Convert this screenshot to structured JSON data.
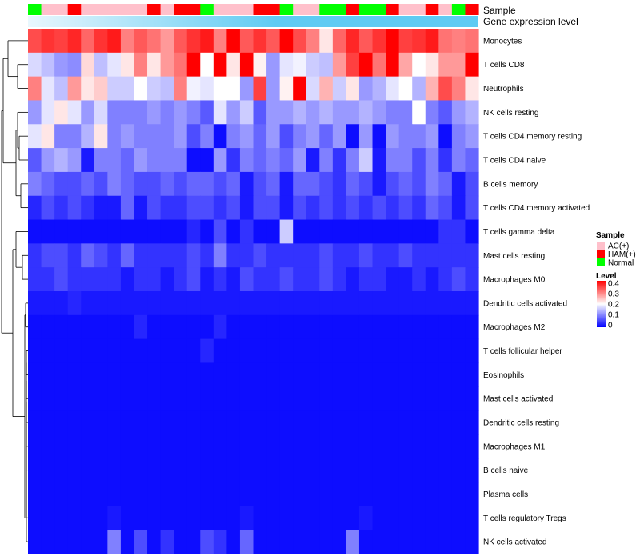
{
  "chart_data": {
    "type": "heatmap",
    "annotation_rows": [
      "Sample",
      "Gene expression level"
    ],
    "sample_groups": [
      "Normal",
      "AC(+)",
      "AC(+)",
      "HAM(+)",
      "AC(+)",
      "AC(+)",
      "AC(+)",
      "AC(+)",
      "AC(+)",
      "HAM(+)",
      "AC(+)",
      "HAM(+)",
      "HAM(+)",
      "Normal",
      "AC(+)",
      "AC(+)",
      "AC(+)",
      "HAM(+)",
      "HAM(+)",
      "Normal",
      "AC(+)",
      "AC(+)",
      "Normal",
      "Normal",
      "HAM(+)",
      "Normal",
      "Normal",
      "HAM(+)",
      "AC(+)",
      "AC(+)",
      "HAM(+)",
      "AC(+)",
      "Normal",
      "HAM(+)"
    ],
    "rows": [
      "Monocytes",
      "T cells CD8",
      "Neutrophils",
      "NK cells resting",
      "T cells CD4 memory resting",
      "T cells CD4 naive",
      "B cells memory",
      "T cells CD4 memory activated",
      "T cells gamma delta",
      "Mast cells resting",
      "Macrophages M0",
      "Dendritic cells activated",
      "Macrophages M2",
      "T cells follicular helper",
      "Eosinophils",
      "Mast cells activated",
      "Dendritic cells resting",
      "Macrophages M1",
      "B cells naive",
      "Plasma cells",
      "T cells regulatory  Tregs",
      "NK cells activated"
    ],
    "values": [
      [
        0.34,
        0.36,
        0.35,
        0.37,
        0.32,
        0.36,
        0.38,
        0.3,
        0.33,
        0.31,
        0.28,
        0.33,
        0.36,
        0.38,
        0.3,
        0.4,
        0.33,
        0.36,
        0.33,
        0.41,
        0.34,
        0.3,
        0.22,
        0.32,
        0.37,
        0.33,
        0.36,
        0.4,
        0.35,
        0.36,
        0.38,
        0.31,
        0.3,
        0.31
      ],
      [
        0.17,
        0.15,
        0.12,
        0.11,
        0.23,
        0.15,
        0.18,
        0.22,
        0.3,
        0.22,
        0.28,
        0.31,
        0.4,
        0.2,
        0.43,
        0.22,
        0.4,
        0.21,
        0.12,
        0.18,
        0.19,
        0.16,
        0.15,
        0.28,
        0.35,
        0.42,
        0.31,
        0.42,
        0.27,
        0.2,
        0.22,
        0.28,
        0.28,
        0.42
      ],
      [
        0.3,
        0.18,
        0.15,
        0.28,
        0.22,
        0.24,
        0.16,
        0.16,
        0.2,
        0.16,
        0.15,
        0.3,
        0.19,
        0.18,
        0.2,
        0.2,
        0.12,
        0.35,
        0.12,
        0.21,
        0.42,
        0.17,
        0.26,
        0.16,
        0.22,
        0.12,
        0.14,
        0.18,
        0.2,
        0.14,
        0.26,
        0.34,
        0.3,
        0.22
      ],
      [
        0.12,
        0.18,
        0.22,
        0.18,
        0.12,
        0.17,
        0.1,
        0.1,
        0.1,
        0.12,
        0.1,
        0.12,
        0.1,
        0.07,
        0.18,
        0.12,
        0.16,
        0.07,
        0.12,
        0.12,
        0.14,
        0.12,
        0.14,
        0.12,
        0.12,
        0.14,
        0.12,
        0.1,
        0.1,
        0.2,
        0.1,
        0.07,
        0.12,
        0.14
      ],
      [
        0.18,
        0.22,
        0.1,
        0.1,
        0.14,
        0.22,
        0.1,
        0.12,
        0.1,
        0.1,
        0.1,
        0.12,
        0.06,
        0.1,
        0.01,
        0.1,
        0.12,
        0.08,
        0.12,
        0.06,
        0.1,
        0.12,
        0.08,
        0.12,
        0.01,
        0.12,
        0.01,
        0.12,
        0.1,
        0.1,
        0.12,
        0.01,
        0.1,
        0.12
      ],
      [
        0.07,
        0.12,
        0.14,
        0.12,
        0.02,
        0.1,
        0.1,
        0.08,
        0.12,
        0.1,
        0.1,
        0.1,
        0.01,
        0.01,
        0.12,
        0.04,
        0.1,
        0.08,
        0.1,
        0.08,
        0.12,
        0.02,
        0.1,
        0.04,
        0.1,
        0.16,
        0.02,
        0.1,
        0.1,
        0.06,
        0.1,
        0.04,
        0.1,
        0.08
      ],
      [
        0.1,
        0.08,
        0.06,
        0.06,
        0.08,
        0.06,
        0.1,
        0.08,
        0.06,
        0.06,
        0.08,
        0.06,
        0.08,
        0.08,
        0.06,
        0.08,
        0.02,
        0.06,
        0.08,
        0.02,
        0.08,
        0.08,
        0.06,
        0.04,
        0.08,
        0.06,
        0.02,
        0.06,
        0.08,
        0.06,
        0.1,
        0.08,
        0.02,
        0.06
      ],
      [
        0.03,
        0.06,
        0.04,
        0.06,
        0.04,
        0.02,
        0.02,
        0.08,
        0.02,
        0.06,
        0.04,
        0.04,
        0.06,
        0.06,
        0.04,
        0.06,
        0.02,
        0.06,
        0.06,
        0.02,
        0.06,
        0.04,
        0.06,
        0.04,
        0.06,
        0.04,
        0.06,
        0.04,
        0.06,
        0.04,
        0.08,
        0.06,
        0.02,
        0.06
      ],
      [
        0.01,
        0.01,
        0.01,
        0.01,
        0.01,
        0.01,
        0.01,
        0.01,
        0.01,
        0.01,
        0.01,
        0.01,
        0.03,
        0.01,
        0.06,
        0.01,
        0.04,
        0.01,
        0.01,
        0.16,
        0.01,
        0.01,
        0.01,
        0.01,
        0.01,
        0.01,
        0.01,
        0.01,
        0.01,
        0.01,
        0.01,
        0.04,
        0.04,
        0.01
      ],
      [
        0.04,
        0.06,
        0.06,
        0.04,
        0.08,
        0.06,
        0.04,
        0.08,
        0.04,
        0.04,
        0.04,
        0.04,
        0.06,
        0.04,
        0.1,
        0.04,
        0.04,
        0.06,
        0.04,
        0.04,
        0.04,
        0.04,
        0.06,
        0.04,
        0.04,
        0.06,
        0.04,
        0.04,
        0.06,
        0.04,
        0.04,
        0.04,
        0.04,
        0.04
      ],
      [
        0.04,
        0.04,
        0.06,
        0.04,
        0.04,
        0.04,
        0.04,
        0.02,
        0.04,
        0.04,
        0.02,
        0.04,
        0.06,
        0.02,
        0.04,
        0.02,
        0.06,
        0.04,
        0.04,
        0.06,
        0.04,
        0.04,
        0.06,
        0.04,
        0.02,
        0.04,
        0.04,
        0.02,
        0.02,
        0.04,
        0.02,
        0.04,
        0.06,
        0.04
      ],
      [
        0.02,
        0.02,
        0.02,
        0.03,
        0.02,
        0.02,
        0.02,
        0.02,
        0.02,
        0.02,
        0.02,
        0.02,
        0.02,
        0.02,
        0.02,
        0.02,
        0.02,
        0.02,
        0.02,
        0.02,
        0.02,
        0.02,
        0.02,
        0.02,
        0.02,
        0.02,
        0.02,
        0.02,
        0.02,
        0.02,
        0.02,
        0.02,
        0.02,
        0.02
      ],
      [
        0.01,
        0.01,
        0.01,
        0.01,
        0.01,
        0.01,
        0.01,
        0.01,
        0.03,
        0.01,
        0.01,
        0.01,
        0.01,
        0.01,
        0.03,
        0.01,
        0.01,
        0.01,
        0.01,
        0.01,
        0.01,
        0.01,
        0.01,
        0.01,
        0.01,
        0.01,
        0.01,
        0.01,
        0.01,
        0.01,
        0.01,
        0.01,
        0.01,
        0.01
      ],
      [
        0.01,
        0.01,
        0.01,
        0.01,
        0.01,
        0.01,
        0.01,
        0.01,
        0.01,
        0.01,
        0.01,
        0.01,
        0.01,
        0.03,
        0.01,
        0.01,
        0.01,
        0.01,
        0.01,
        0.01,
        0.01,
        0.01,
        0.01,
        0.01,
        0.01,
        0.01,
        0.01,
        0.01,
        0.01,
        0.01,
        0.01,
        0.01,
        0.01,
        0.01
      ],
      [
        0.01,
        0.01,
        0.01,
        0.01,
        0.01,
        0.01,
        0.01,
        0.01,
        0.01,
        0.01,
        0.01,
        0.01,
        0.01,
        0.01,
        0.01,
        0.01,
        0.01,
        0.01,
        0.01,
        0.01,
        0.01,
        0.01,
        0.01,
        0.01,
        0.01,
        0.01,
        0.01,
        0.01,
        0.01,
        0.01,
        0.01,
        0.01,
        0.01,
        0.01
      ],
      [
        0.01,
        0.01,
        0.01,
        0.01,
        0.01,
        0.01,
        0.01,
        0.01,
        0.01,
        0.01,
        0.01,
        0.01,
        0.01,
        0.01,
        0.01,
        0.01,
        0.01,
        0.01,
        0.01,
        0.01,
        0.01,
        0.01,
        0.01,
        0.01,
        0.01,
        0.01,
        0.01,
        0.01,
        0.01,
        0.01,
        0.01,
        0.01,
        0.01,
        0.01
      ],
      [
        0.01,
        0.01,
        0.01,
        0.01,
        0.01,
        0.01,
        0.01,
        0.01,
        0.01,
        0.01,
        0.01,
        0.01,
        0.01,
        0.01,
        0.01,
        0.01,
        0.01,
        0.01,
        0.01,
        0.01,
        0.01,
        0.01,
        0.01,
        0.01,
        0.01,
        0.01,
        0.01,
        0.01,
        0.01,
        0.01,
        0.01,
        0.01,
        0.01,
        0.01
      ],
      [
        0.01,
        0.01,
        0.01,
        0.01,
        0.01,
        0.01,
        0.01,
        0.01,
        0.01,
        0.01,
        0.01,
        0.01,
        0.01,
        0.01,
        0.01,
        0.01,
        0.01,
        0.01,
        0.01,
        0.01,
        0.01,
        0.01,
        0.01,
        0.01,
        0.01,
        0.01,
        0.01,
        0.01,
        0.01,
        0.01,
        0.01,
        0.01,
        0.01,
        0.01
      ],
      [
        0.01,
        0.01,
        0.01,
        0.01,
        0.01,
        0.01,
        0.01,
        0.01,
        0.01,
        0.01,
        0.01,
        0.01,
        0.01,
        0.01,
        0.01,
        0.01,
        0.01,
        0.01,
        0.01,
        0.01,
        0.01,
        0.01,
        0.01,
        0.01,
        0.01,
        0.01,
        0.01,
        0.01,
        0.01,
        0.01,
        0.01,
        0.01,
        0.01,
        0.01
      ],
      [
        0.01,
        0.01,
        0.01,
        0.01,
        0.01,
        0.01,
        0.01,
        0.01,
        0.01,
        0.01,
        0.01,
        0.01,
        0.01,
        0.01,
        0.01,
        0.01,
        0.01,
        0.01,
        0.01,
        0.01,
        0.01,
        0.01,
        0.01,
        0.01,
        0.01,
        0.01,
        0.01,
        0.01,
        0.01,
        0.01,
        0.01,
        0.01,
        0.01,
        0.01
      ],
      [
        0.01,
        0.01,
        0.01,
        0.01,
        0.01,
        0.01,
        0.02,
        0.01,
        0.01,
        0.01,
        0.01,
        0.01,
        0.01,
        0.01,
        0.01,
        0.01,
        0.02,
        0.01,
        0.01,
        0.01,
        0.01,
        0.01,
        0.01,
        0.01,
        0.01,
        0.02,
        0.01,
        0.01,
        0.01,
        0.01,
        0.01,
        0.01,
        0.01,
        0.01
      ],
      [
        0.01,
        0.01,
        0.01,
        0.01,
        0.01,
        0.01,
        0.1,
        0.01,
        0.06,
        0.01,
        0.04,
        0.01,
        0.01,
        0.06,
        0.04,
        0.01,
        0.08,
        0.01,
        0.01,
        0.01,
        0.01,
        0.01,
        0.01,
        0.01,
        0.1,
        0.01,
        0.01,
        0.01,
        0.01,
        0.01,
        0.01,
        0.01,
        0.01,
        0.01
      ]
    ],
    "legend": {
      "sample_title": "Sample",
      "sample_entries": [
        {
          "label": "AC(+)",
          "color": "#ffc0cb"
        },
        {
          "label": "HAM(+)",
          "color": "#ff0000"
        },
        {
          "label": "Normal",
          "color": "#00ff00"
        }
      ],
      "level_title": "Level",
      "level_ticks": [
        "0.4",
        "0.3",
        "0.2",
        "0.1",
        "0"
      ],
      "level_range": [
        0,
        0.4
      ]
    },
    "colors": {
      "low": "#0000ff",
      "mid": "#ffffff",
      "high": "#ff0000",
      "gene_expression_bar": "#5fcbf3",
      "gene_expression_bar_light": "#e9f7fd"
    }
  }
}
